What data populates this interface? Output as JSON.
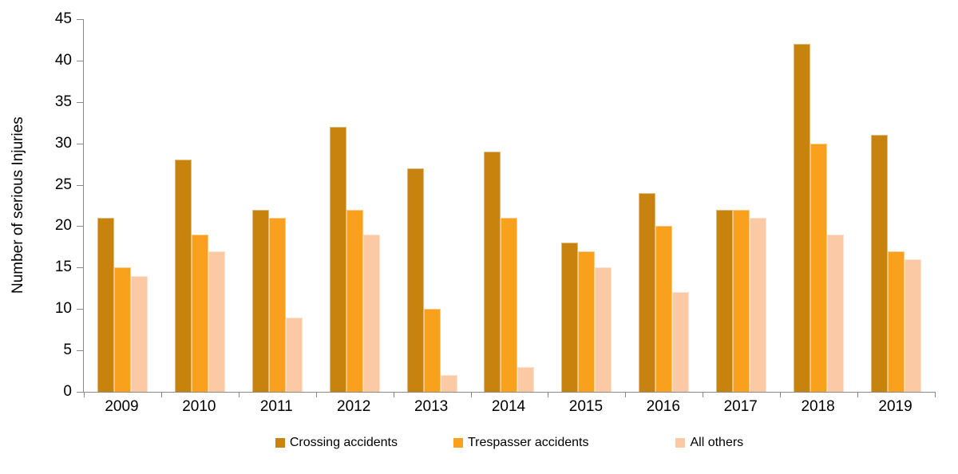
{
  "chart_data": {
    "type": "bar",
    "title": "",
    "xlabel": "",
    "ylabel": "Number of serious Injuries",
    "categories": [
      "2009",
      "2010",
      "2011",
      "2012",
      "2013",
      "2014",
      "2015",
      "2016",
      "2017",
      "2018",
      "2019"
    ],
    "series": [
      {
        "name": "Crossing accidents",
        "color": "#C8830F",
        "values": [
          21,
          28,
          22,
          32,
          27,
          29,
          18,
          24,
          22,
          42,
          31
        ]
      },
      {
        "name": "Trespasser accidents",
        "color": "#F9A01D",
        "values": [
          15,
          19,
          21,
          22,
          10,
          21,
          17,
          20,
          22,
          30,
          17
        ]
      },
      {
        "name": "All others",
        "color": "#FBC9A4",
        "values": [
          14,
          17,
          9,
          19,
          2,
          3,
          15,
          12,
          21,
          19,
          16
        ]
      }
    ],
    "ylim": [
      0,
      45
    ],
    "ytick_step": 5,
    "grid": false,
    "legend_position": "bottom",
    "axis_color": "#898989",
    "text_color": "#000000"
  }
}
